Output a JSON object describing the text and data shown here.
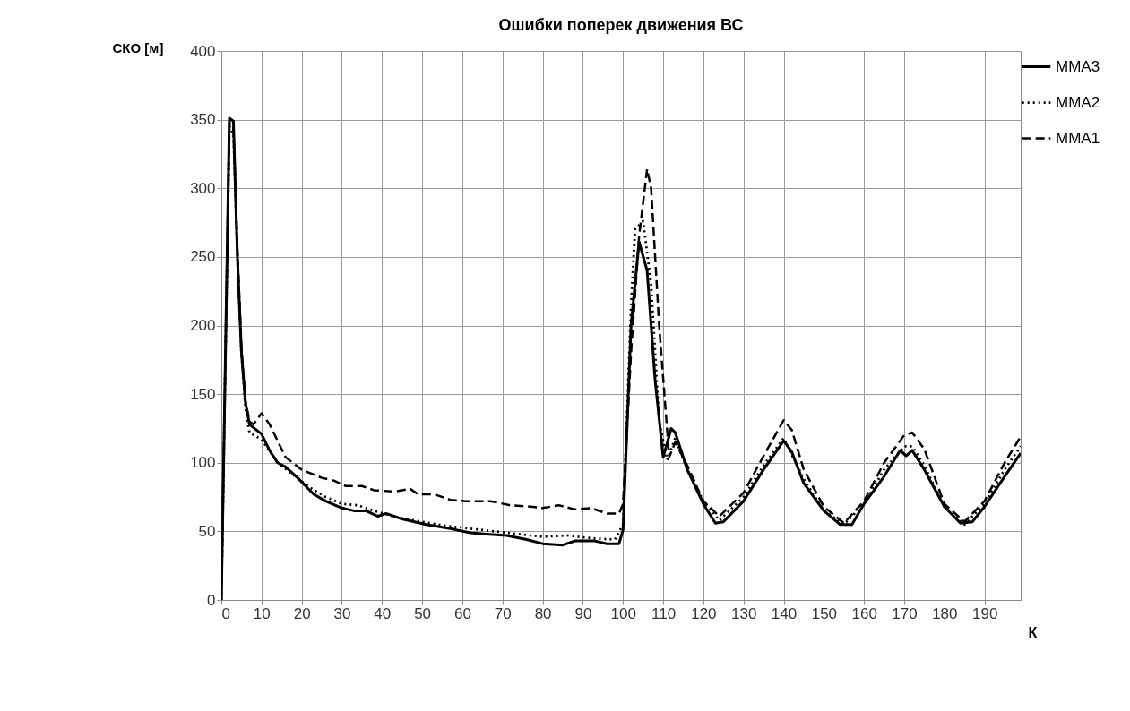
{
  "chart_data": {
    "type": "line",
    "title": "Ошибки поперек движения ВС",
    "xlabel": "К",
    "ylabel": "СКО [м]",
    "xlim": [
      0,
      199
    ],
    "xticks": [
      0,
      10,
      20,
      30,
      40,
      50,
      60,
      70,
      80,
      90,
      100,
      110,
      120,
      130,
      140,
      150,
      160,
      170,
      180,
      190
    ],
    "ylim": [
      0,
      400
    ],
    "yticks": [
      0,
      50,
      100,
      150,
      200,
      250,
      300,
      350,
      400
    ],
    "grid": true,
    "legend": "right",
    "series": [
      {
        "name": "MMA3",
        "color": "#000000",
        "line_style": "solid",
        "x": [
          0,
          2,
          3,
          4,
          5,
          6,
          7,
          10,
          12,
          14,
          16,
          19,
          23,
          26,
          30,
          33,
          36,
          39,
          41,
          45,
          51,
          57,
          62,
          66,
          71,
          76,
          80,
          85,
          88,
          93,
          96,
          99,
          100,
          102,
          104,
          106,
          108,
          110,
          112,
          113,
          116,
          120,
          123,
          125,
          130,
          135,
          140,
          142,
          145,
          150,
          154,
          157,
          160,
          165,
          169,
          170.5,
          172,
          175,
          180,
          184,
          187,
          190,
          195,
          199
        ],
        "values": [
          0,
          351,
          349,
          250,
          181,
          144,
          128,
          121,
          109,
          100,
          97,
          89,
          77,
          72,
          67,
          65,
          65,
          61,
          63,
          59,
          55,
          52,
          49,
          48,
          47,
          44,
          41,
          40,
          43,
          43,
          41,
          41,
          51,
          200,
          261,
          240,
          160,
          104,
          125,
          122,
          95,
          70,
          56,
          57,
          72,
          95,
          116,
          108,
          85,
          65,
          55,
          55,
          70,
          90,
          109,
          105,
          109,
          95,
          68,
          56,
          57,
          68,
          90,
          107
        ]
      },
      {
        "name": "MMA2",
        "color": "#000000",
        "line_style": "dotted",
        "x": [
          0,
          2,
          3,
          4,
          5,
          6,
          7,
          10,
          14,
          18,
          22,
          26,
          30,
          34,
          38,
          44,
          50,
          56,
          62,
          68,
          74,
          80,
          86,
          92,
          98,
          100,
          102,
          103,
          105,
          107,
          109,
          111,
          113,
          116,
          120,
          124,
          130,
          135,
          140,
          145,
          150,
          155,
          160,
          165,
          170,
          172,
          175,
          180,
          185,
          190,
          195,
          199
        ],
        "values": [
          0,
          345,
          340,
          250,
          180,
          140,
          122,
          117,
          100,
          91,
          82,
          75,
          70,
          69,
          65,
          60,
          57,
          54,
          52,
          50,
          48,
          46,
          47,
          45,
          44,
          55,
          215,
          270,
          276,
          230,
          130,
          102,
          118,
          95,
          72,
          58,
          75,
          98,
          118,
          88,
          65,
          55,
          70,
          95,
          112,
          112,
          98,
          68,
          55,
          70,
          95,
          112
        ]
      },
      {
        "name": "MMA1",
        "color": "#000000",
        "line_style": "dashed",
        "x": [
          0,
          2,
          3,
          4,
          5,
          6,
          7,
          8,
          10,
          12,
          16,
          20,
          25,
          28,
          31,
          35,
          38,
          43,
          47,
          49,
          53,
          57,
          61,
          67,
          72,
          77,
          80,
          84,
          88,
          92,
          96,
          99,
          100,
          102,
          104,
          106,
          107,
          109,
          111.5,
          113,
          116,
          120,
          124,
          130,
          135,
          140,
          142,
          145,
          150,
          155,
          160,
          165,
          170,
          172,
          175,
          180,
          185,
          190,
          195,
          199
        ],
        "values": [
          0,
          348,
          345,
          255,
          182,
          145,
          130,
          128,
          136,
          128,
          104,
          95,
          89,
          87,
          83,
          83,
          80,
          79,
          81,
          77,
          77,
          73,
          72,
          72,
          69,
          68,
          67,
          69,
          66,
          67,
          63,
          63,
          70,
          180,
          265,
          314,
          300,
          200,
          104,
          115,
          98,
          72,
          61,
          78,
          105,
          131,
          124,
          95,
          68,
          56,
          72,
          100,
          120,
          122,
          110,
          70,
          57,
          72,
          100,
          119
        ]
      }
    ]
  }
}
